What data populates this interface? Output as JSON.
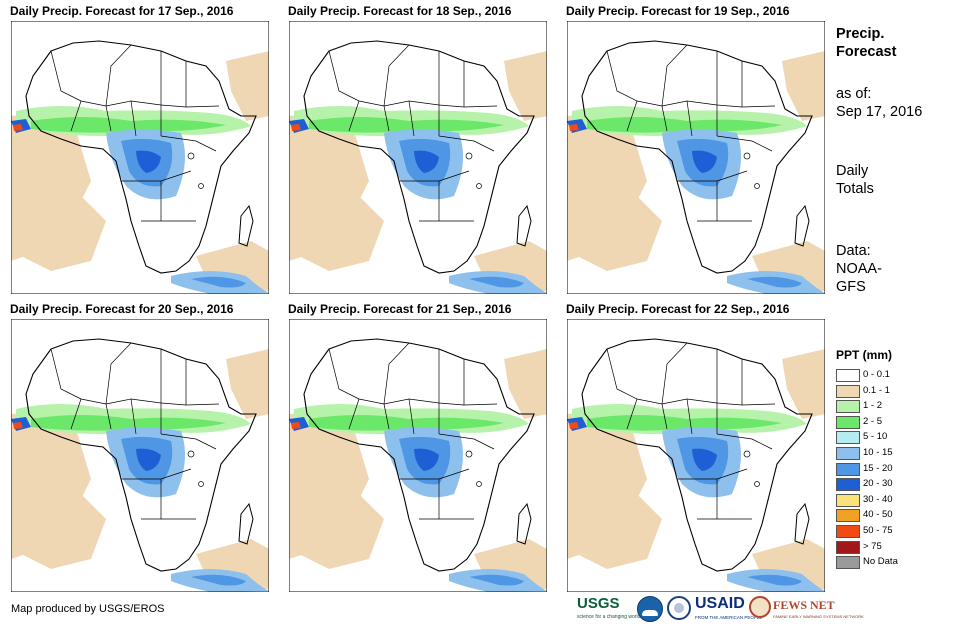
{
  "panels": [
    {
      "title": "Daily Precip. Forecast for 17 Sep., 2016"
    },
    {
      "title": "Daily Precip. Forecast for 18 Sep., 2016"
    },
    {
      "title": "Daily Precip. Forecast for 19 Sep., 2016"
    },
    {
      "title": "Daily Precip. Forecast for 20 Sep., 2016"
    },
    {
      "title": "Daily Precip. Forecast for 21 Sep., 2016"
    },
    {
      "title": "Daily Precip. Forecast for 22 Sep., 2016"
    }
  ],
  "side": {
    "heading_line1": "Precip.",
    "heading_line2": "Forecast",
    "asof_line1": "as of:",
    "asof_line2": "Sep 17, 2016",
    "totals_line1": "Daily",
    "totals_line2": "Totals",
    "data_line1": "Data:",
    "data_line2": "NOAA-",
    "data_line3": "GFS"
  },
  "legend": {
    "title": "PPT (mm)",
    "items": [
      {
        "label": "0 - 0.1",
        "color": "#ffffff"
      },
      {
        "label": "0.1 - 1",
        "color": "#efd7b4"
      },
      {
        "label": "1 - 2",
        "color": "#b6f2a9"
      },
      {
        "label": "2 - 5",
        "color": "#6be76a"
      },
      {
        "label": "5 - 10",
        "color": "#b4ecf0"
      },
      {
        "label": "10 - 15",
        "color": "#8ec0ee"
      },
      {
        "label": "15 - 20",
        "color": "#4f96e4"
      },
      {
        "label": "20 - 30",
        "color": "#1f5fd6"
      },
      {
        "label": "30 - 40",
        "color": "#fbe37a"
      },
      {
        "label": "40 - 50",
        "color": "#f0a224"
      },
      {
        "label": "50 - 75",
        "color": "#f24a14"
      },
      {
        "label": "> 75",
        "color": "#a21818"
      },
      {
        "label": "No Data",
        "color": "#9a9a9a"
      }
    ]
  },
  "credit": "Map produced by USGS/EROS",
  "logos": {
    "usgs": "USGS",
    "usgs_tagline": "science for a changing world",
    "usaid": "USAID",
    "usaid_tagline": "FROM THE AMERICAN PEOPLE",
    "fews": "FEWS NET",
    "fews_tagline": "FAMINE EARLY WARNING SYSTEMS NETWORK"
  }
}
